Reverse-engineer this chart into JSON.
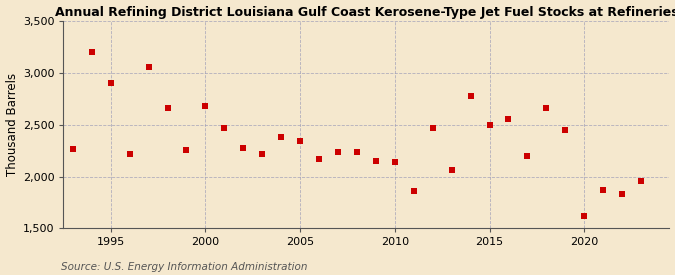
{
  "title": "Annual Refining District Louisiana Gulf Coast Kerosene-Type Jet Fuel Stocks at Refineries",
  "ylabel": "Thousand Barrels",
  "source": "Source: U.S. Energy Information Administration",
  "background_color": "#f5e8ce",
  "plot_bg_color": "#f5e8ce",
  "marker_color": "#cc0000",
  "marker": "s",
  "marker_size": 4,
  "ylim": [
    1500,
    3500
  ],
  "yticks": [
    1500,
    2000,
    2500,
    3000,
    3500
  ],
  "xlim": [
    1992.5,
    2024.5
  ],
  "xticks": [
    1995,
    2000,
    2005,
    2010,
    2015,
    2020
  ],
  "years": [
    1993,
    1994,
    1995,
    1996,
    1997,
    1998,
    1999,
    2000,
    2001,
    2002,
    2003,
    2004,
    2005,
    2006,
    2007,
    2008,
    2009,
    2010,
    2011,
    2012,
    2013,
    2014,
    2015,
    2016,
    2017,
    2018,
    2019,
    2020,
    2021,
    2022,
    2023
  ],
  "values": [
    2270,
    3200,
    2905,
    2220,
    3055,
    2660,
    2255,
    2680,
    2470,
    2280,
    2215,
    2380,
    2340,
    2170,
    2240,
    2240,
    2150,
    2140,
    1865,
    2470,
    2060,
    2780,
    2500,
    2555,
    2200,
    2665,
    2450,
    1620,
    1875,
    1830,
    1960
  ],
  "title_fontsize": 9.0,
  "label_fontsize": 8.5,
  "tick_fontsize": 8.0,
  "source_fontsize": 7.5,
  "grid_color": "#a0a0b8",
  "spine_color": "#555555"
}
